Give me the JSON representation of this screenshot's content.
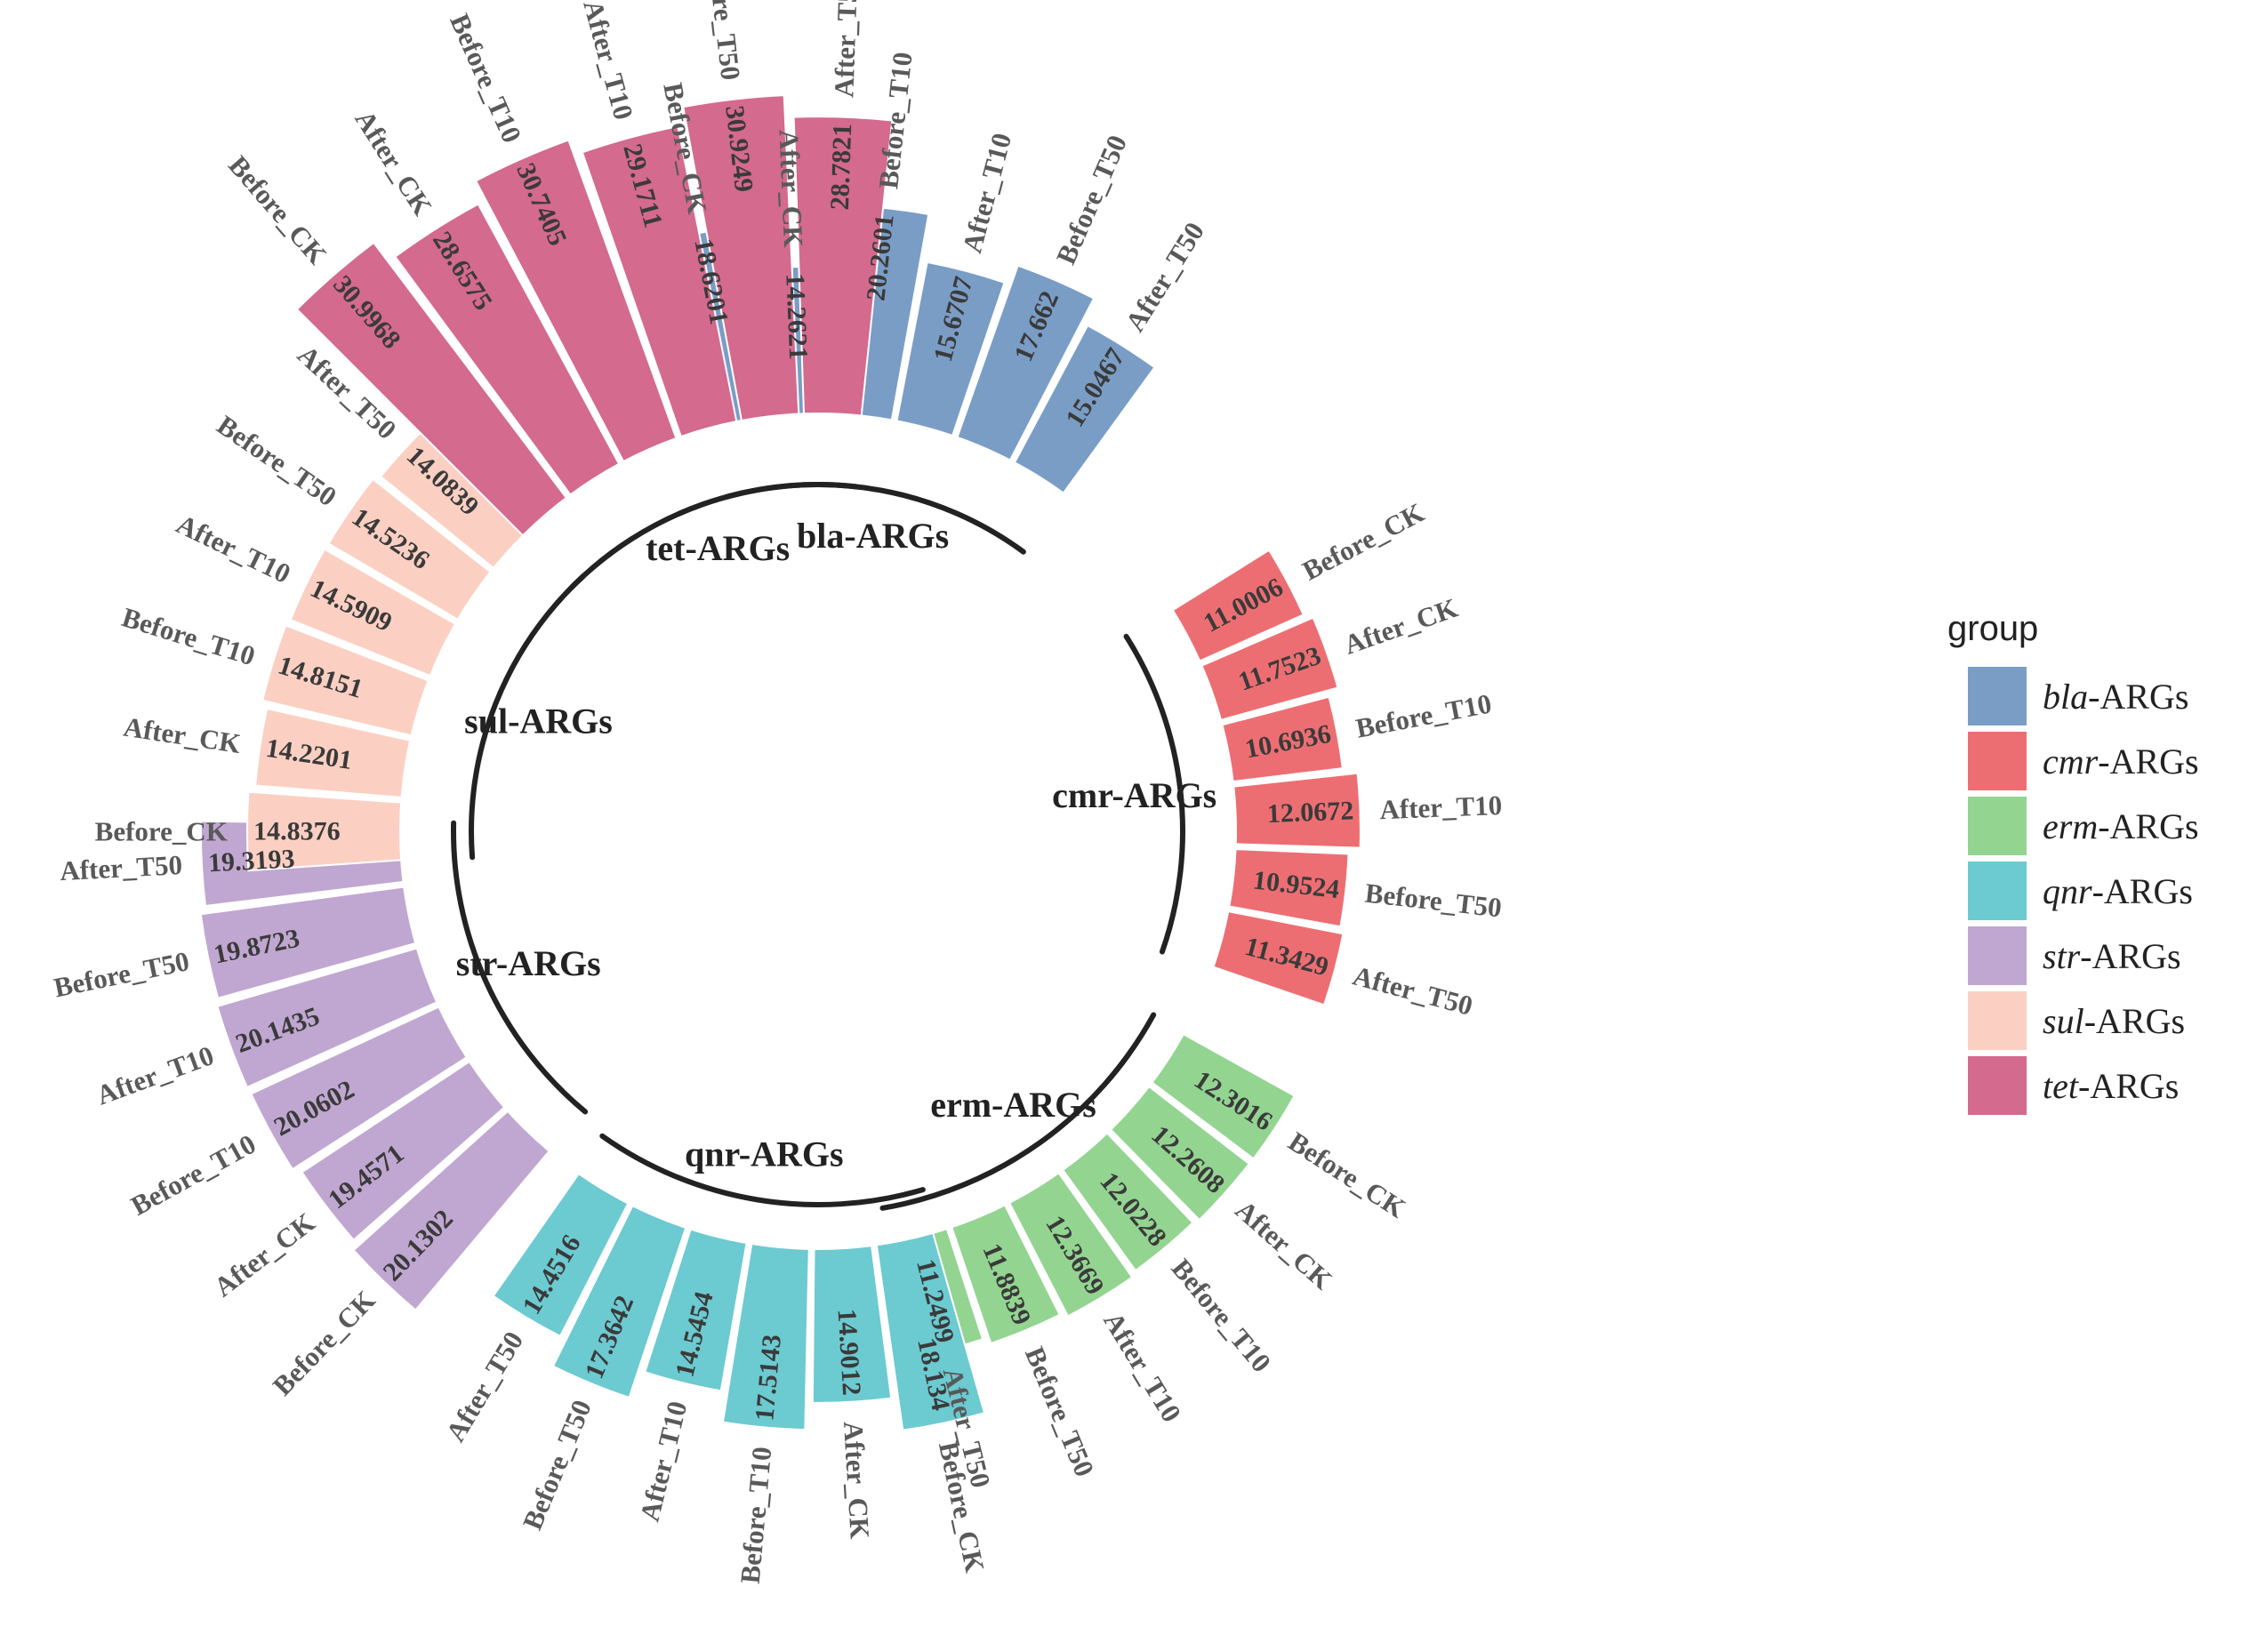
{
  "chart_data": {
    "type": "bar",
    "layout": "circular",
    "title": "",
    "legend_title": "group",
    "legend_position": "right",
    "categories": [
      "Before_CK",
      "After_CK",
      "Before_T10",
      "After_T10",
      "Before_T50",
      "After_T50"
    ],
    "groups": [
      {
        "key": "bla",
        "name": "bla-ARGs",
        "italic": "bla",
        "suffix": "-ARGs",
        "color": "#7a9dc6",
        "order": [
          "Before_CK",
          "After_CK",
          "Before_T10",
          "After_T10",
          "Before_T50",
          "After_T50"
        ],
        "labels": [
          "18.6201",
          "14.2621",
          "20.2601",
          "15.6707",
          "17.662",
          "15.0467"
        ]
      },
      {
        "key": "cmr",
        "name": "cmr-ARGs",
        "italic": "cmr",
        "suffix": "-ARGs",
        "color": "#ed6e72",
        "order": [
          "Before_CK",
          "After_CK",
          "Before_T10",
          "After_T10",
          "Before_T50",
          "After_T50"
        ],
        "labels": [
          "11.0006",
          "11.7523",
          "10.6936",
          "12.0672",
          "10.9524",
          "11.3429"
        ]
      },
      {
        "key": "erm",
        "name": "erm-ARGs",
        "italic": "erm",
        "suffix": "-ARGs",
        "color": "#93d491",
        "order": [
          "Before_CK",
          "After_CK",
          "Before_T10",
          "After_T10",
          "Before_T50",
          "After_T50"
        ],
        "labels": [
          "12.3016",
          "12.2608",
          "12.0228",
          "12.3669",
          "11.8839",
          "11.2499"
        ]
      },
      {
        "key": "qnr",
        "name": "qnr-ARGs",
        "italic": "qnr",
        "suffix": "-ARGs",
        "color": "#6ccad1",
        "order": [
          "Before_CK",
          "After_CK",
          "Before_T10",
          "After_T10",
          "Before_T50",
          "After_T50"
        ],
        "labels": [
          "18.134",
          "14.9012",
          "17.5143",
          "14.5454",
          "17.3642",
          "14.4516"
        ]
      },
      {
        "key": "str",
        "name": "str-ARGs",
        "italic": "str",
        "suffix": "-ARGs",
        "color": "#c0a7d1",
        "order": [
          "Before_CK",
          "After_CK",
          "Before_T10",
          "After_T10",
          "Before_T50",
          "After_T50"
        ],
        "labels": [
          "20.1302",
          "19.4571",
          "20.0602",
          "20.1435",
          "19.8723",
          "19.3193"
        ]
      },
      {
        "key": "sul",
        "name": "sul-ARGs",
        "italic": "sul",
        "suffix": "-ARGs",
        "color": "#fbd0c3",
        "order": [
          "Before_CK",
          "After_CK",
          "Before_T10",
          "After_T10",
          "Before_T50",
          "After_T50"
        ],
        "labels": [
          "14.8376",
          "14.2201",
          "14.8151",
          "14.5909",
          "14.5236",
          "14.0839"
        ]
      },
      {
        "key": "tet",
        "name": "tet-ARGs",
        "italic": "tet",
        "suffix": "-ARGs",
        "color": "#d46a8d",
        "order": [
          "Before_CK",
          "After_CK",
          "Before_T10",
          "After_T10",
          "Before_T50",
          "After_T50"
        ],
        "labels": [
          "30.9968",
          "28.6575",
          "30.7405",
          "29.1711",
          "30.9249",
          "28.7821"
        ]
      }
    ]
  }
}
